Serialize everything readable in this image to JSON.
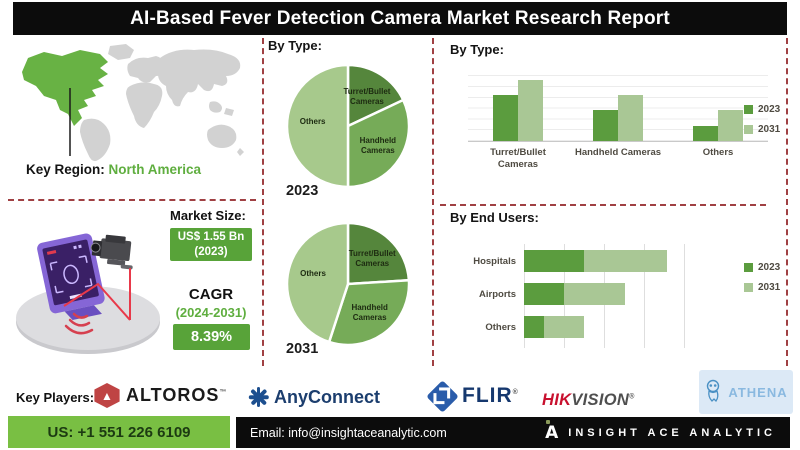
{
  "title": "AI-Based Fever Detection Camera Market Research Report",
  "colors": {
    "accent_green": "#5fae3f",
    "box_green": "#58a339",
    "footer_green": "#79bf43",
    "dashed_border": "#a04043",
    "map_highlight": "#68b244",
    "map_land": "#d2d2d2",
    "pie_colors": [
      "#55863c",
      "#76ab58",
      "#a7c98c"
    ],
    "series_2023": "#5b9c3e",
    "series_2031": "#a9c795"
  },
  "key_region": {
    "label": "Key Region:",
    "value": "North America"
  },
  "market": {
    "size_label": "Market Size:",
    "size_value_line1": "US$ 1.55 Bn",
    "size_value_line2": "(2023)",
    "cagr_label": "CAGR",
    "cagr_period": "(2024-2031)",
    "cagr_value": "8.39%"
  },
  "sections": {
    "pies_title": "By Type:",
    "bars_title": "By Type:",
    "end_users_title": "By End Users:"
  },
  "chart_data": [
    {
      "type": "pie",
      "title": "By Type:",
      "year": "2023",
      "slices": [
        {
          "label": "Turret/Bullet Cameras",
          "value": 18
        },
        {
          "label": "Handheld Cameras",
          "value": 32
        },
        {
          "label": "Others",
          "value": 50
        }
      ],
      "units": "percent share (estimated from slice angles)"
    },
    {
      "type": "pie",
      "title": "By Type:",
      "year": "2031",
      "slices": [
        {
          "label": "Turret/Bullet Cameras",
          "value": 24
        },
        {
          "label": "Handheld Cameras",
          "value": 31
        },
        {
          "label": "Others",
          "value": 45
        }
      ],
      "units": "percent share (estimated from slice angles)"
    },
    {
      "type": "bar",
      "title": "By Type:",
      "categories": [
        "Turret/Bullet Cameras",
        "Handheld Cameras",
        "Others"
      ],
      "series": [
        {
          "name": "2023",
          "values": [
            46,
            31,
            15
          ]
        },
        {
          "name": "2031",
          "values": [
            61,
            46,
            31
          ]
        }
      ],
      "ylim": [
        0,
        75
      ],
      "grid": true,
      "legend_position": "right",
      "units": "relative height (no axis labels shown)"
    },
    {
      "type": "bar",
      "orientation": "horizontal",
      "stacked": true,
      "title": "By End Users:",
      "categories": [
        "Hospitals",
        "Airports",
        "Others"
      ],
      "series": [
        {
          "name": "2023",
          "values": [
            60,
            40,
            20
          ]
        },
        {
          "name": "2031",
          "values": [
            83,
            61,
            40
          ]
        }
      ],
      "xlim": [
        0,
        168
      ],
      "grid": true,
      "legend_position": "right",
      "units": "relative length (no axis labels shown)"
    }
  ],
  "key_players": {
    "label": "Key Players:",
    "altoros": {
      "name": "ALTOROS",
      "mark": "™"
    },
    "anyconnect": {
      "name": "AnyConnect"
    },
    "flir": {
      "name": "FLIR",
      "mark": "®"
    },
    "hikvision": {
      "name_red": "HIK",
      "name_gray": "VISION",
      "mark": "®"
    },
    "athena": {
      "name": "ATHENA"
    }
  },
  "footer": {
    "phone": "US: +1 551 226 6109",
    "email": "Email: info@insightaceanalytic.com",
    "brand_initial": "A",
    "brand": "INSIGHT ACE ANALYTIC"
  }
}
